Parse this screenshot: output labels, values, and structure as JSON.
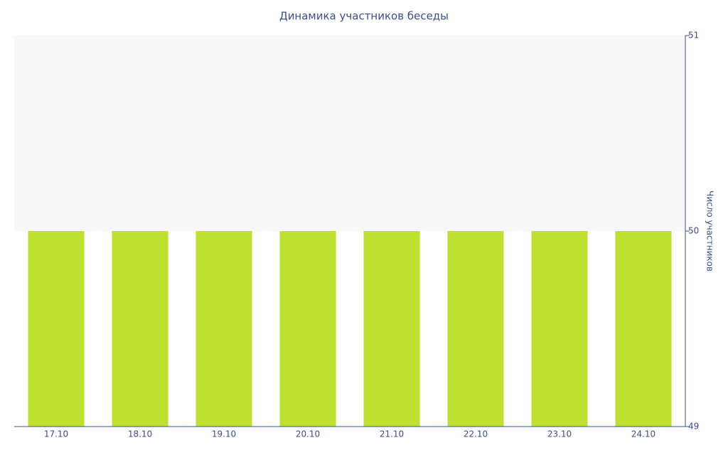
{
  "chart_data": {
    "type": "bar",
    "title": "Динамика участников беседы",
    "y_axis_label": "Число участников",
    "categories": [
      "17.10",
      "18.10",
      "19.10",
      "20.10",
      "21.10",
      "22.10",
      "23.10",
      "24.10"
    ],
    "values": [
      50,
      50,
      50,
      50,
      50,
      50,
      50,
      50
    ],
    "color": "#bee02f",
    "ylim": [
      49,
      51
    ],
    "yticks": [
      49,
      50,
      51
    ],
    "y_axis_side": "right",
    "banded_grid": true
  }
}
